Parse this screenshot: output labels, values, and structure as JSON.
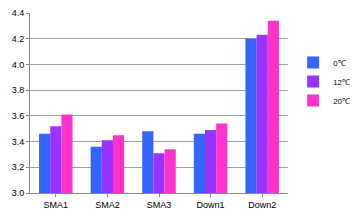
{
  "chart_data": {
    "type": "bar",
    "categories": [
      "SMA1",
      "SMA2",
      "SMA3",
      "Down1",
      "Down2"
    ],
    "series": [
      {
        "name": "0℃",
        "color": "#3366ff",
        "values": [
          3.46,
          3.36,
          3.48,
          3.46,
          4.2
        ]
      },
      {
        "name": "12℃",
        "color": "#9933ff",
        "values": [
          3.52,
          3.41,
          3.31,
          3.49,
          4.23
        ]
      },
      {
        "name": "20℃",
        "color": "#ff33cc",
        "values": [
          3.61,
          3.45,
          3.34,
          3.54,
          4.34
        ]
      }
    ],
    "ylim": [
      3.0,
      4.4
    ],
    "yticks": [
      {
        "value": 3.0,
        "label": "3.0"
      },
      3.2,
      3.4,
      3.6,
      3.8,
      {
        "value": 4.0,
        "label": "4.0"
      },
      4.2,
      4.4
    ],
    "grid": true,
    "legend": "right"
  }
}
